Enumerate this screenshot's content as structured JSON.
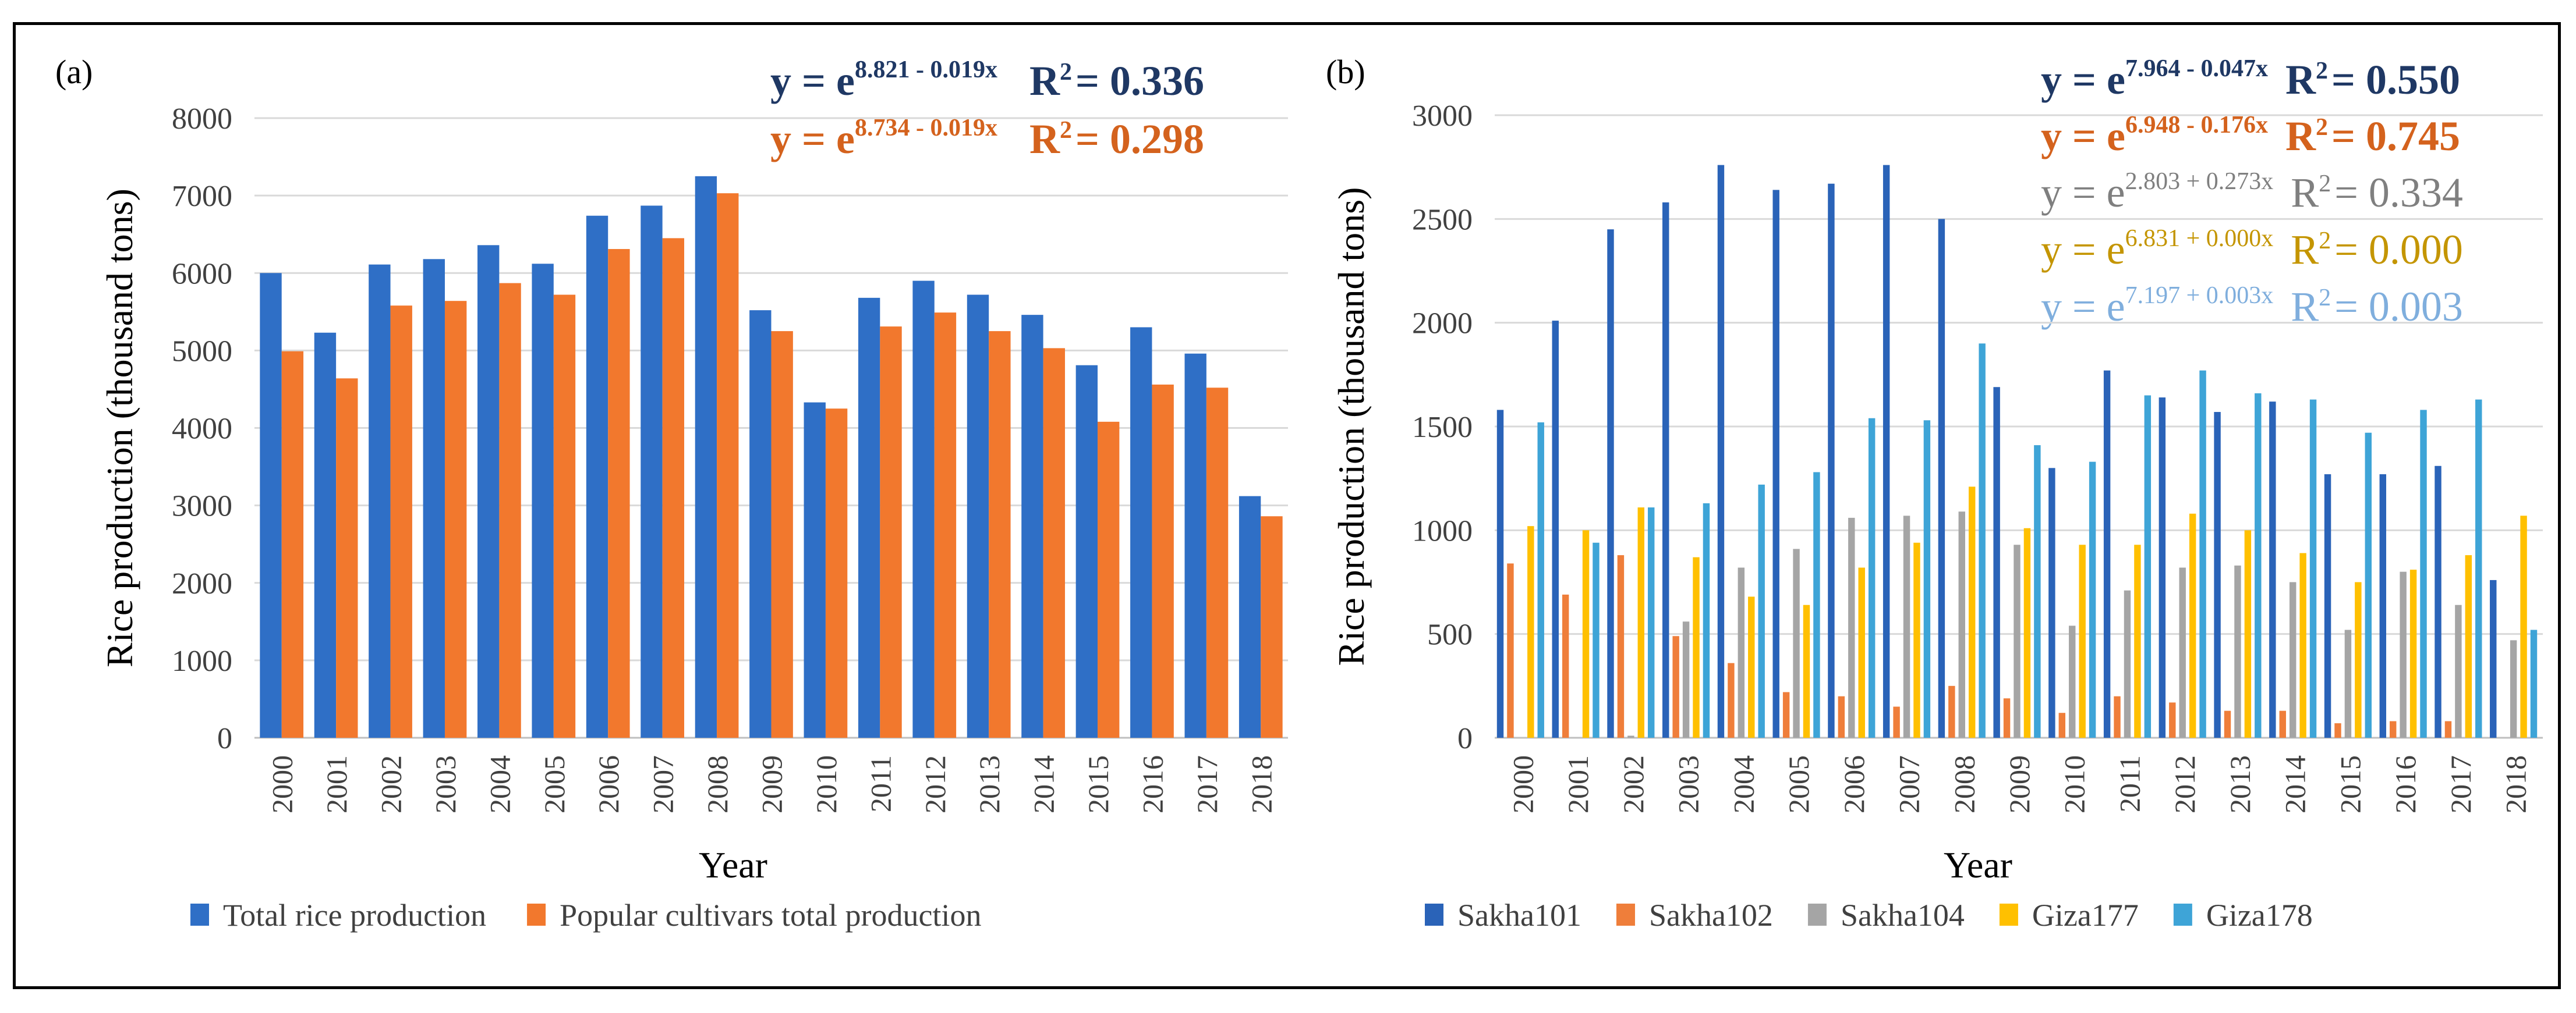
{
  "panel_a": {
    "label": "(a)",
    "eq1": {
      "base": "y = e",
      "exp": "8.821 - 0.019x",
      "r2_label": "R",
      "r2_sup": "2",
      "r2_value": "= 0.336"
    },
    "eq2": {
      "base": "y = e",
      "exp": "8.734 - 0.019x",
      "r2_label": "R",
      "r2_sup": "2",
      "r2_value": "= 0.298"
    }
  },
  "panel_b": {
    "label": "(b)",
    "eqs": [
      {
        "base": "y = e",
        "exp": "7.964 - 0.047x",
        "r2_label": "R",
        "r2_sup": "2",
        "r2_value": "= 0.550"
      },
      {
        "base": "y = e",
        "exp": "6.948 - 0.176x",
        "r2_label": "R",
        "r2_sup": "2",
        "r2_value": "= 0.745"
      },
      {
        "base": "y = e",
        "exp": "2.803 + 0.273x",
        "r2_label": "R",
        "r2_sup": "2",
        "r2_value": "= 0.334"
      },
      {
        "base": "y = e",
        "exp": "6.831 + 0.000x",
        "r2_label": "R",
        "r2_sup": "2",
        "r2_value": "= 0.000"
      },
      {
        "base": "y = e",
        "exp": "7.197 + 0.003x",
        "r2_label": "R",
        "r2_sup": "2",
        "r2_value": "= 0.003"
      }
    ]
  },
  "chart_data": [
    {
      "type": "bar",
      "title": "",
      "xlabel": "Year",
      "ylabel": "Rice production (thousand tons)",
      "ylim": [
        0,
        8000
      ],
      "yticks": [
        "0",
        "1000",
        "2000",
        "3000",
        "4000",
        "5000",
        "6000",
        "7000",
        "8000"
      ],
      "categories": [
        "2000",
        "2001",
        "2002",
        "2003",
        "2004",
        "2005",
        "2006",
        "2007",
        "2008",
        "2009",
        "2010",
        "2011",
        "2012",
        "2013",
        "2014",
        "2015",
        "2016",
        "2017",
        "2018"
      ],
      "series": [
        {
          "name": "Total rice production",
          "color": "#2F6FC6",
          "values": [
            6000,
            5230,
            6110,
            6180,
            6360,
            6120,
            6740,
            6870,
            7250,
            5520,
            4330,
            5680,
            5900,
            5720,
            5460,
            4810,
            5300,
            4960,
            3120
          ]
        },
        {
          "name": "Popular cultivars total production",
          "color": "#F2782D",
          "values": [
            4990,
            4640,
            5580,
            5640,
            5870,
            5720,
            6310,
            6450,
            7030,
            5250,
            4250,
            5310,
            5490,
            5250,
            5030,
            4080,
            4560,
            4520,
            2860
          ]
        }
      ],
      "legend": "bottom"
    },
    {
      "type": "bar",
      "title": "",
      "xlabel": "Year",
      "ylabel": "Rice production (thousand tons)",
      "ylim": [
        0,
        3000
      ],
      "yticks": [
        "0",
        "500",
        "1000",
        "1500",
        "2000",
        "2500",
        "3000"
      ],
      "categories": [
        "2000",
        "2001",
        "2002",
        "2003",
        "2004",
        "2005",
        "2006",
        "2007",
        "2008",
        "2009",
        "2010",
        "2011",
        "2012",
        "2013",
        "2014",
        "2015",
        "2016",
        "2017",
        "2018"
      ],
      "series": [
        {
          "name": "Sakha101",
          "color": "#2A63B8",
          "values": [
            1580,
            2010,
            2450,
            2580,
            2760,
            2640,
            2670,
            2760,
            2500,
            1690,
            1300,
            1770,
            1640,
            1570,
            1620,
            1270,
            1270,
            1310,
            760
          ]
        },
        {
          "name": "Sakha102",
          "color": "#EF7E3A",
          "values": [
            840,
            690,
            880,
            490,
            360,
            220,
            200,
            150,
            250,
            190,
            120,
            200,
            170,
            130,
            130,
            70,
            80,
            80,
            0
          ]
        },
        {
          "name": "Sakha104",
          "color": "#A5A5A5",
          "values": [
            0,
            0,
            10,
            560,
            820,
            910,
            1060,
            1070,
            1090,
            930,
            540,
            710,
            820,
            830,
            750,
            520,
            800,
            640,
            470
          ]
        },
        {
          "name": "Giza177",
          "color": "#FFC000",
          "values": [
            1020,
            1000,
            1110,
            870,
            680,
            640,
            820,
            940,
            1210,
            1010,
            930,
            930,
            1080,
            1000,
            890,
            750,
            810,
            880,
            1070
          ]
        },
        {
          "name": "Giza178",
          "color": "#3EA4D7",
          "values": [
            1520,
            940,
            1110,
            1130,
            1220,
            1280,
            1540,
            1530,
            1900,
            1410,
            1330,
            1650,
            1770,
            1660,
            1630,
            1470,
            1580,
            1630,
            520
          ]
        }
      ],
      "legend": "bottom"
    }
  ]
}
